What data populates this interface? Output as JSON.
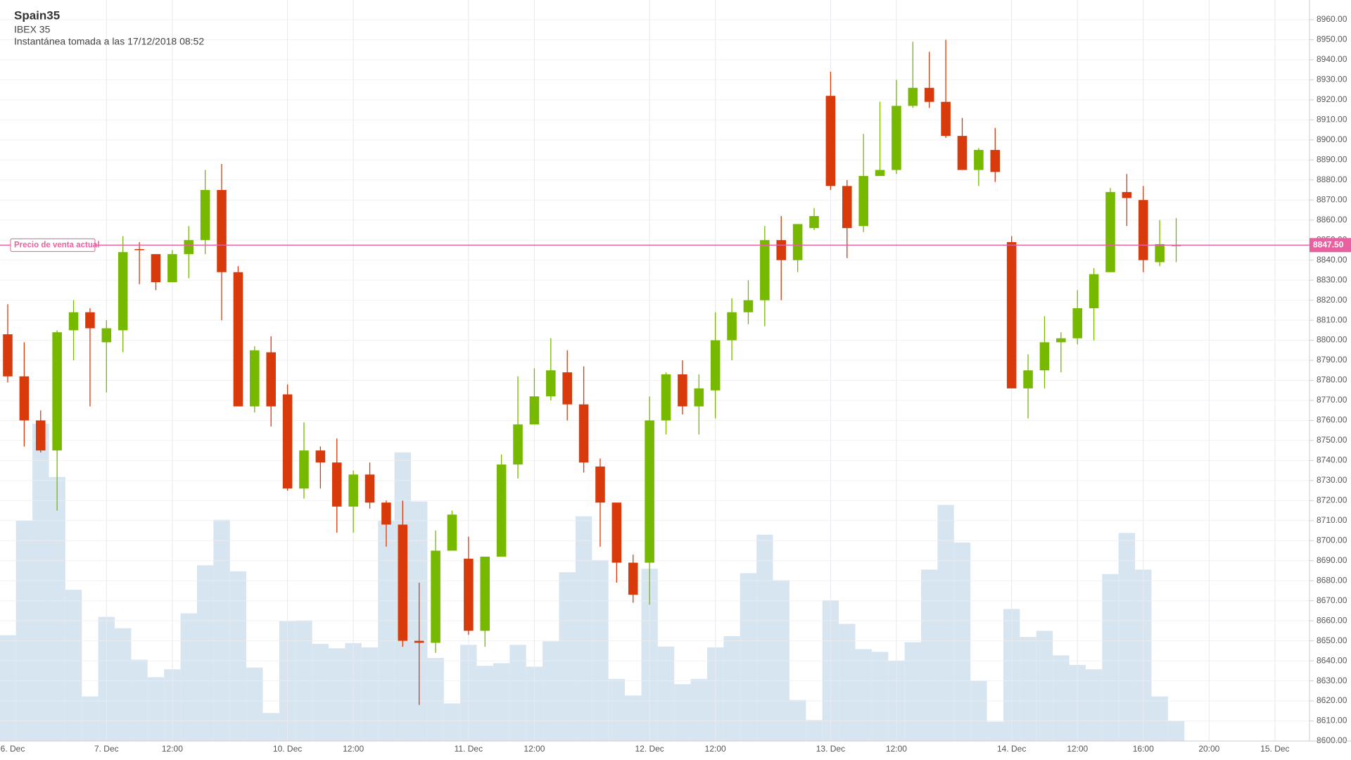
{
  "chart_data": {
    "type": "candlestick",
    "title": "Spain35",
    "subtitle": "IBEX 35",
    "note": "Instantánea tomada a las 17/12/2018 08:52",
    "up_color": "#77b800",
    "down_color": "#d93a0b",
    "volume_color": "#d7e5f1",
    "price_line_color": "#e8609f",
    "grid": true,
    "open": [
      8803,
      8782,
      8760,
      8745,
      8805,
      8814,
      8799,
      8805,
      8845.5,
      8843,
      8829,
      8843,
      8850,
      8875,
      8834,
      8767,
      8794,
      8773,
      8726,
      8745,
      8739,
      8717,
      8733,
      8719,
      8708,
      8650,
      8649,
      8695,
      8691,
      8655,
      8692,
      8738,
      8758,
      8772,
      8784,
      8768,
      8737,
      8719,
      8689,
      8689,
      8760,
      8783,
      8767,
      8775,
      8800,
      8814,
      8820,
      8850,
      8840,
      8856,
      8922,
      8877,
      8857,
      8882,
      8885,
      8917,
      8926,
      8919,
      8902,
      8885,
      8895,
      8849,
      8776,
      8785,
      8799,
      8801,
      8816,
      8834,
      8874,
      8870,
      8839,
      8847
    ],
    "high": [
      8818,
      8799,
      8765,
      8805,
      8820,
      8816,
      8810,
      8852,
      8849,
      8843,
      8845,
      8857,
      8885,
      8888,
      8837,
      8797,
      8802,
      8778,
      8759,
      8747,
      8751,
      8735,
      8739,
      8720,
      8720,
      8679,
      8705,
      8715,
      8702,
      8692,
      8743,
      8782,
      8786,
      8801,
      8795,
      8787,
      8741,
      8719,
      8693,
      8772,
      8784,
      8790,
      8783,
      8814,
      8821,
      8830,
      8857,
      8862,
      8858,
      8866,
      8934,
      8880,
      8903,
      8919,
      8930,
      8949,
      8944,
      8950,
      8911,
      8896,
      8906,
      8852,
      8793,
      8812,
      8804,
      8825,
      8836,
      8876,
      8883,
      8877,
      8860,
      8861
    ],
    "low": [
      8779,
      8747,
      8744,
      8715,
      8790,
      8767,
      8774,
      8794,
      8828,
      8825,
      8829,
      8831,
      8843,
      8810,
      8767,
      8764,
      8757,
      8725,
      8721,
      8726,
      8704,
      8704,
      8716,
      8697,
      8647,
      8618,
      8644,
      8695,
      8653,
      8647,
      8692,
      8731,
      8758,
      8770,
      8760,
      8734,
      8697,
      8679,
      8669,
      8668,
      8753,
      8763,
      8753,
      8761,
      8790,
      8808,
      8807,
      8820,
      8834,
      8855,
      8875,
      8841,
      8854,
      8882,
      8883,
      8916,
      8916,
      8901,
      8885,
      8877,
      8879,
      8776,
      8761,
      8776,
      8784,
      8798,
      8800,
      8834,
      8857,
      8834,
      8837,
      8839
    ],
    "close": [
      8782,
      8760,
      8745,
      8804,
      8814,
      8806,
      8806,
      8844,
      8845,
      8829,
      8843,
      8850,
      8875,
      8834,
      8767,
      8795,
      8767,
      8726,
      8745,
      8739,
      8717,
      8733,
      8719,
      8708,
      8650,
      8649,
      8695,
      8713,
      8655,
      8692,
      8738,
      8758,
      8772,
      8785,
      8768,
      8739,
      8719,
      8689,
      8673,
      8760,
      8783,
      8767,
      8776,
      8800,
      8814,
      8820,
      8850,
      8840,
      8858,
      8862,
      8877,
      8856,
      8882,
      8885,
      8917,
      8926,
      8919,
      8902,
      8885,
      8895,
      8884,
      8776,
      8785,
      8799,
      8801,
      8816,
      8833,
      8874,
      8871,
      8840,
      8848,
      8847.5
    ],
    "volume": [
      121,
      252,
      363,
      302,
      173,
      51,
      142,
      129,
      93,
      73,
      82,
      146,
      201,
      253,
      194,
      84,
      32,
      137,
      138,
      111,
      106,
      112,
      107,
      252,
      330,
      274,
      95,
      43,
      110,
      86,
      89,
      110,
      85,
      114,
      193,
      257,
      207,
      71,
      52,
      197,
      108,
      65,
      71,
      107,
      120,
      192,
      236,
      184,
      47,
      24,
      161,
      134,
      105,
      102,
      92,
      113,
      196,
      270,
      227,
      69,
      22,
      151,
      119,
      126,
      98,
      87,
      82,
      191,
      238,
      196,
      51,
      23
    ],
    "ylim": [
      8600,
      8960
    ],
    "yticks": [
      {
        "value": 8600,
        "label": "8600.00"
      },
      {
        "value": 8610,
        "label": "8610.00"
      },
      {
        "value": 8620,
        "label": "8620.00"
      },
      {
        "value": 8630,
        "label": "8630.00"
      },
      {
        "value": 8640,
        "label": "8640.00"
      },
      {
        "value": 8650,
        "label": "8650.00"
      },
      {
        "value": 8660,
        "label": "8660.00"
      },
      {
        "value": 8670,
        "label": "8670.00"
      },
      {
        "value": 8680,
        "label": "8680.00"
      },
      {
        "value": 8690,
        "label": "8690.00"
      },
      {
        "value": 8700,
        "label": "8700.00"
      },
      {
        "value": 8710,
        "label": "8710.00"
      },
      {
        "value": 8720,
        "label": "8720.00"
      },
      {
        "value": 8730,
        "label": "8730.00"
      },
      {
        "value": 8740,
        "label": "8740.00"
      },
      {
        "value": 8750,
        "label": "8750.00"
      },
      {
        "value": 8760,
        "label": "8760.00"
      },
      {
        "value": 8770,
        "label": "8770.00"
      },
      {
        "value": 8780,
        "label": "8780.00"
      },
      {
        "value": 8790,
        "label": "8790.00"
      },
      {
        "value": 8800,
        "label": "8800.00"
      },
      {
        "value": 8810,
        "label": "8810.00"
      },
      {
        "value": 8820,
        "label": "8820.00"
      },
      {
        "value": 8830,
        "label": "8830.00"
      },
      {
        "value": 8840,
        "label": "8840.00"
      },
      {
        "value": 8850,
        "label": "8850.00"
      },
      {
        "value": 8860,
        "label": "8860.00"
      },
      {
        "value": 8870,
        "label": "8870.00"
      },
      {
        "value": 8880,
        "label": "8880.00"
      },
      {
        "value": 8890,
        "label": "8890.00"
      },
      {
        "value": 8900,
        "label": "8900.00"
      },
      {
        "value": 8910,
        "label": "8910.00"
      },
      {
        "value": 8920,
        "label": "8920.00"
      },
      {
        "value": 8930,
        "label": "8930.00"
      },
      {
        "value": 8940,
        "label": "8940.00"
      },
      {
        "value": 8950,
        "label": "8950.00"
      },
      {
        "value": 8960,
        "label": "8960.00"
      }
    ],
    "xlim": [
      -0.47,
      79.1
    ],
    "xticks": [
      {
        "value": -5,
        "label": "6. Dec"
      },
      {
        "value": 6,
        "label": "7. Dec"
      },
      {
        "value": 10,
        "label": "12:00"
      },
      {
        "value": 17,
        "label": "10. Dec"
      },
      {
        "value": 21,
        "label": "12:00"
      },
      {
        "value": 28,
        "label": "11. Dec"
      },
      {
        "value": 32,
        "label": "12:00"
      },
      {
        "value": 39,
        "label": "12. Dec"
      },
      {
        "value": 43,
        "label": "12:00"
      },
      {
        "value": 50,
        "label": "13. Dec"
      },
      {
        "value": 54,
        "label": "12:00"
      },
      {
        "value": 61,
        "label": "14. Dec"
      },
      {
        "value": 65,
        "label": "12:00"
      },
      {
        "value": 69,
        "label": "16:00"
      },
      {
        "value": 73,
        "label": "20:00"
      },
      {
        "value": 77,
        "label": "15. Dec"
      }
    ],
    "current_price": {
      "value": 8847.5,
      "label": "8847.50"
    },
    "current_price_text": "Precio de venta actual"
  }
}
